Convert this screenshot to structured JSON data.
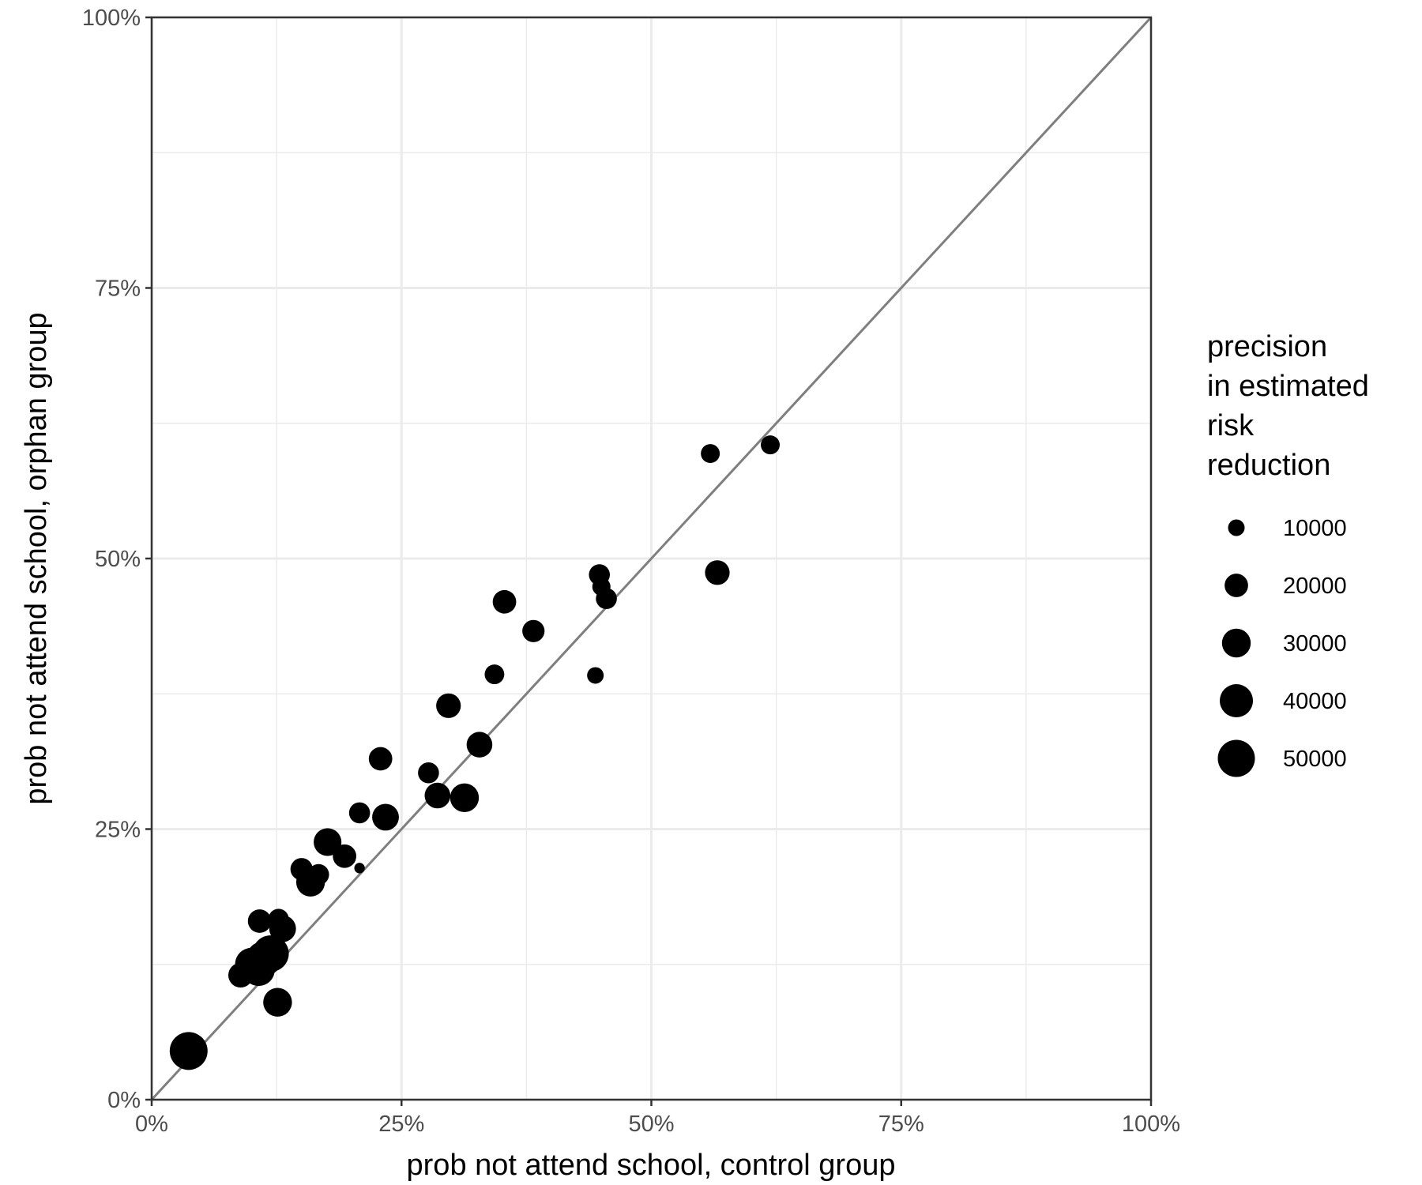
{
  "chart_data": {
    "type": "scatter",
    "xlabel": "prob not attend school, control group",
    "ylabel": "prob not attend school, orphan group",
    "xlim": [
      0,
      1
    ],
    "ylim": [
      0,
      1
    ],
    "x_ticks": [
      0,
      0.25,
      0.5,
      0.75,
      1
    ],
    "x_tick_labels": [
      "0%",
      "25%",
      "50%",
      "75%",
      "100%"
    ],
    "y_ticks": [
      0,
      0.25,
      0.5,
      0.75,
      1
    ],
    "y_tick_labels": [
      "0%",
      "25%",
      "50%",
      "75%",
      "100%"
    ],
    "grid": true,
    "reference_line": {
      "from": [
        0,
        0
      ],
      "to": [
        1,
        1
      ],
      "color": "#7f7f7f"
    },
    "point_color": "#000000",
    "size_legend": {
      "title_lines": [
        "precision",
        "in estimated",
        "risk",
        "reduction"
      ],
      "placement": "right",
      "values": [
        10000,
        20000,
        30000,
        40000,
        50000
      ],
      "labels": [
        "10000",
        "20000",
        "30000",
        "40000",
        "50000"
      ]
    },
    "points": [
      {
        "x": 0.037,
        "y": 0.045,
        "size": 52000
      },
      {
        "x": 0.089,
        "y": 0.115,
        "size": 22000
      },
      {
        "x": 0.1,
        "y": 0.125,
        "size": 40000
      },
      {
        "x": 0.107,
        "y": 0.12,
        "size": 38000
      },
      {
        "x": 0.112,
        "y": 0.13,
        "size": 45000
      },
      {
        "x": 0.119,
        "y": 0.135,
        "size": 48000
      },
      {
        "x": 0.108,
        "y": 0.165,
        "size": 20000
      },
      {
        "x": 0.127,
        "y": 0.167,
        "size": 15000
      },
      {
        "x": 0.131,
        "y": 0.158,
        "size": 26000
      },
      {
        "x": 0.126,
        "y": 0.09,
        "size": 30000
      },
      {
        "x": 0.15,
        "y": 0.213,
        "size": 18000
      },
      {
        "x": 0.159,
        "y": 0.201,
        "size": 30000
      },
      {
        "x": 0.167,
        "y": 0.208,
        "size": 16000
      },
      {
        "x": 0.176,
        "y": 0.238,
        "size": 28000
      },
      {
        "x": 0.193,
        "y": 0.225,
        "size": 20000
      },
      {
        "x": 0.208,
        "y": 0.265,
        "size": 16000
      },
      {
        "x": 0.208,
        "y": 0.214,
        "size": 4000
      },
      {
        "x": 0.229,
        "y": 0.315,
        "size": 20000
      },
      {
        "x": 0.234,
        "y": 0.261,
        "size": 26000
      },
      {
        "x": 0.277,
        "y": 0.302,
        "size": 16000
      },
      {
        "x": 0.286,
        "y": 0.281,
        "size": 24000
      },
      {
        "x": 0.297,
        "y": 0.364,
        "size": 22000
      },
      {
        "x": 0.313,
        "y": 0.279,
        "size": 30000
      },
      {
        "x": 0.328,
        "y": 0.328,
        "size": 24000
      },
      {
        "x": 0.343,
        "y": 0.393,
        "size": 14000
      },
      {
        "x": 0.353,
        "y": 0.46,
        "size": 20000
      },
      {
        "x": 0.382,
        "y": 0.433,
        "size": 18000
      },
      {
        "x": 0.444,
        "y": 0.392,
        "size": 10000
      },
      {
        "x": 0.448,
        "y": 0.485,
        "size": 16000
      },
      {
        "x": 0.45,
        "y": 0.474,
        "size": 12000
      },
      {
        "x": 0.455,
        "y": 0.463,
        "size": 16000
      },
      {
        "x": 0.559,
        "y": 0.597,
        "size": 13000
      },
      {
        "x": 0.566,
        "y": 0.487,
        "size": 22000
      },
      {
        "x": 0.619,
        "y": 0.605,
        "size": 13000
      }
    ]
  }
}
